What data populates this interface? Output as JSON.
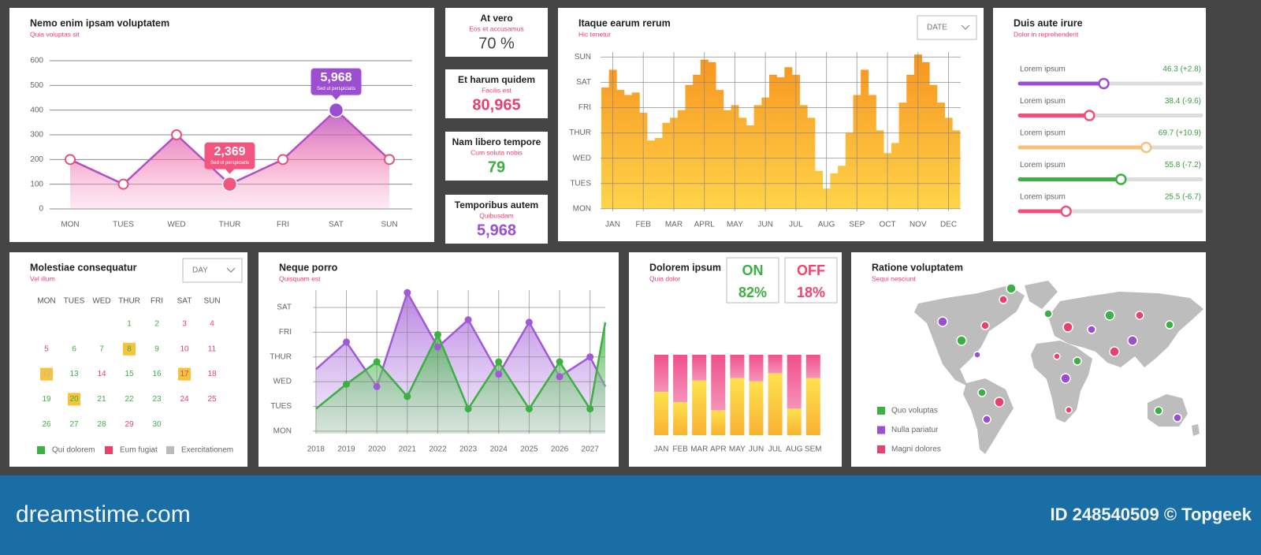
{
  "chart_data": [
    {
      "type": "area",
      "title": "Nemo enim ipsam voluptatem",
      "subtitle": "Quia voluptas sit",
      "categories": [
        "MON",
        "TUES",
        "WED",
        "THUR",
        "FRI",
        "SAT",
        "SUN"
      ],
      "values": [
        200,
        100,
        300,
        100,
        200,
        400,
        200
      ],
      "color": "#b44ec2",
      "ylim": [
        0,
        600
      ],
      "yticks": [
        0,
        100,
        200,
        300,
        400,
        500,
        600
      ],
      "grid": true,
      "annotations": [
        {
          "label": "5,968",
          "note": "Sed ut perspiciatis",
          "color": "#9b4fd0"
        },
        {
          "label": "2,369",
          "note": "Sed ut perspiciatis",
          "color": "#f2557f"
        }
      ]
    },
    {
      "type": "bar",
      "title": "Itaque earum rerum",
      "subtitle": "Hic tenetur",
      "dropdown": "DATE",
      "x": [
        -0.25,
        0,
        0.25,
        0.5,
        0.75,
        1,
        1.25,
        1.5,
        1.75,
        2,
        2.25,
        2.5,
        2.75,
        3,
        3.25,
        3.5,
        3.75,
        4,
        4.25,
        4.5,
        4.75,
        5,
        5.25,
        5.5,
        5.75,
        6,
        6.25,
        6.5,
        6.75,
        7,
        7.25,
        7.5,
        7.75,
        8,
        8.25,
        8.5,
        8.75,
        9,
        9.25,
        9.5,
        9.75,
        10,
        10.25,
        10.5,
        10.75,
        11,
        11.25
      ],
      "values": [
        4.8,
        5.5,
        4.7,
        4.5,
        4.6,
        3.8,
        2.7,
        2.8,
        3.4,
        3.6,
        3.9,
        4.9,
        5.3,
        5.9,
        5.8,
        4.7,
        3.9,
        4.1,
        3.6,
        3.3,
        4.1,
        4.4,
        5.3,
        5.2,
        5.6,
        5.3,
        4.1,
        3.6,
        1.5,
        0.8,
        1.4,
        1.7,
        3.0,
        4.5,
        5.5,
        4.5,
        3.1,
        2.2,
        2.6,
        4.2,
        5.3,
        6.1,
        5.8,
        4.9,
        4.2,
        3.6,
        3.1
      ],
      "colors": [
        "#f7931e",
        "#ffd54a"
      ],
      "xlim": [
        -0.4,
        11.4
      ],
      "xticks": [
        {
          "value": 0,
          "label": "JAN"
        },
        {
          "value": 1,
          "label": "FEB"
        },
        {
          "value": 2,
          "label": "MAR"
        },
        {
          "value": 3,
          "label": "APRL"
        },
        {
          "value": 4,
          "label": "MAY"
        },
        {
          "value": 5,
          "label": "JUN"
        },
        {
          "value": 6,
          "label": "JUL"
        },
        {
          "value": 7,
          "label": "AUG"
        },
        {
          "value": 8,
          "label": "SEP"
        },
        {
          "value": 9,
          "label": "OCT"
        },
        {
          "value": 10,
          "label": "NOV"
        },
        {
          "value": 11,
          "label": "DEC"
        }
      ],
      "ylim": [
        -0.1,
        6.2
      ],
      "yticks": [
        {
          "value": 0,
          "label": "MON"
        },
        {
          "value": 1,
          "label": "TUES"
        },
        {
          "value": 2,
          "label": "WED"
        },
        {
          "value": 3,
          "label": "THUR"
        },
        {
          "value": 4,
          "label": "FRI"
        },
        {
          "value": 5,
          "label": "SAT"
        },
        {
          "value": 6,
          "label": "SUN"
        }
      ],
      "grid": true
    },
    {
      "type": "area",
      "title": "Neque porro",
      "subtitle": "Quisquam est",
      "x": [
        2018,
        2019,
        2020,
        2021,
        2022,
        2023,
        2024,
        2025,
        2026,
        2027,
        2027.5
      ],
      "series": [
        {
          "color": "#a259d9",
          "values": [
            2.5,
            3.6,
            1.8,
            5.6,
            3.4,
            4.5,
            2.3,
            4.4,
            2.2,
            3.0,
            1.8
          ]
        },
        {
          "color": "#3cb043",
          "values": [
            0.9,
            1.9,
            2.8,
            1.4,
            3.9,
            0.9,
            2.8,
            0.9,
            2.8,
            0.9,
            4.4
          ]
        }
      ],
      "xlim": [
        2017.9,
        2027.5
      ],
      "xticks": [
        2018,
        2019,
        2020,
        2021,
        2022,
        2023,
        2024,
        2025,
        2026,
        2027
      ],
      "ylim": [
        -0.1,
        5.7
      ],
      "yticks": [
        {
          "value": 0,
          "label": "MON"
        },
        {
          "value": 1,
          "label": "TUES"
        },
        {
          "value": 2,
          "label": "WED"
        },
        {
          "value": 3,
          "label": "THUR"
        },
        {
          "value": 4,
          "label": "FRI"
        },
        {
          "value": 5,
          "label": "SAT"
        }
      ],
      "grid": true
    },
    {
      "type": "stacked_bar",
      "title": "Dolorem ipsum",
      "subtitle": "Quia dolor",
      "badges": [
        {
          "label": "ON",
          "value": "82%",
          "color": "#3cb043"
        },
        {
          "label": "OFF",
          "value": "18%",
          "color": "#f0436e"
        }
      ],
      "categories": [
        "JAN",
        "FEB",
        "MAR",
        "APR",
        "MAY",
        "JUN",
        "JUL",
        "AUG",
        "SEM"
      ],
      "series": [
        {
          "colors": [
            "#fde24e",
            "#f9b233"
          ],
          "values": [
            54,
            41,
            68,
            31,
            71,
            67,
            77,
            33,
            71
          ]
        },
        {
          "colors": [
            "#f0508a",
            "#f593b8"
          ],
          "values": [
            46,
            59,
            32,
            69,
            29,
            33,
            23,
            67,
            29
          ]
        }
      ],
      "ylim": [
        0,
        100
      ]
    }
  ],
  "kpis": [
    {
      "title": "At vero",
      "subtitle": "Eos et accusamus",
      "value": "70 %",
      "color": "#444444"
    },
    {
      "title": "Et harum quidem",
      "subtitle": "Facilis est",
      "value": "80,965",
      "color": "#e8416d"
    },
    {
      "title": "Nam libero tempore",
      "subtitle": "Cum soluta nobis",
      "value": "79",
      "color": "#3cb043"
    },
    {
      "title": "Temporibus autem",
      "subtitle": "Quibusdam",
      "value": "5,968",
      "color": "#9b4fd0"
    }
  ],
  "sliders": {
    "title": "Duis aute irure",
    "subtitle": "Dolor in reprehenderit",
    "range": [
      0,
      100
    ],
    "items": [
      {
        "label": "Lorem ipsum",
        "value": 46.3,
        "value_label": "46.3 (+2.8)",
        "color": "#9b4fd0"
      },
      {
        "label": "Lorem ipsum",
        "value": 38.4,
        "value_label": "38.4 (-9.6)",
        "color": "#f0507a"
      },
      {
        "label": "Lorem ipsum",
        "value": 69.7,
        "value_label": "69.7 (+10.9)",
        "color": "#f7c27e"
      },
      {
        "label": "Lorem ipsum",
        "value": 55.8,
        "value_label": "55.8 (-7.2)",
        "color": "#3cb043"
      },
      {
        "label": "Lorem ipsum",
        "value": 25.5,
        "value_label": "25.5 (-6.7)",
        "color": "#f0507a"
      }
    ]
  },
  "calendar": {
    "title": "Molestiae consequatur",
    "subtitle": "Vel illum",
    "dropdown": "DAY",
    "weekdays": [
      "MON",
      "TUES",
      "WED",
      "THUR",
      "FRI",
      "SAT",
      "SUN"
    ],
    "weeks": [
      [
        null,
        null,
        null,
        1,
        2,
        3,
        4
      ],
      [
        5,
        6,
        7,
        8,
        9,
        10,
        11
      ],
      [
        12,
        13,
        14,
        15,
        16,
        17,
        18
      ],
      [
        19,
        20,
        21,
        22,
        23,
        24,
        25
      ],
      [
        26,
        27,
        28,
        29,
        30,
        null,
        null
      ]
    ],
    "highlighted": [
      8,
      12,
      17,
      20
    ],
    "highlight_color": "#f6c33b",
    "series": [
      {
        "name": "Qui dolorem",
        "color": "#3cb043",
        "days": [
          1,
          2,
          6,
          7,
          8,
          9,
          13,
          15,
          16,
          19,
          20,
          21,
          22,
          23,
          26,
          27,
          28,
          30
        ]
      },
      {
        "name": "Eum fugiat",
        "color": "#e8416d",
        "days": [
          3,
          4,
          5,
          10,
          11,
          14,
          17,
          18,
          24,
          25,
          29
        ]
      },
      {
        "name": "Exercitationem",
        "color": "#bbbbbb",
        "days": [
          12
        ]
      }
    ]
  },
  "map": {
    "title": "Ratione voluptatem",
    "subtitle": "Sequi nesciunt",
    "legend": [
      {
        "name": "Quo voluptas",
        "color": "#3cb043"
      },
      {
        "name": "Nulla pariatur",
        "color": "#9b4fd0"
      },
      {
        "name": "Magni dolores",
        "color": "#e8416d"
      }
    ]
  },
  "footer": {
    "brand": "dreamstime.com",
    "credit": "ID 248540509 © Topgeek"
  }
}
